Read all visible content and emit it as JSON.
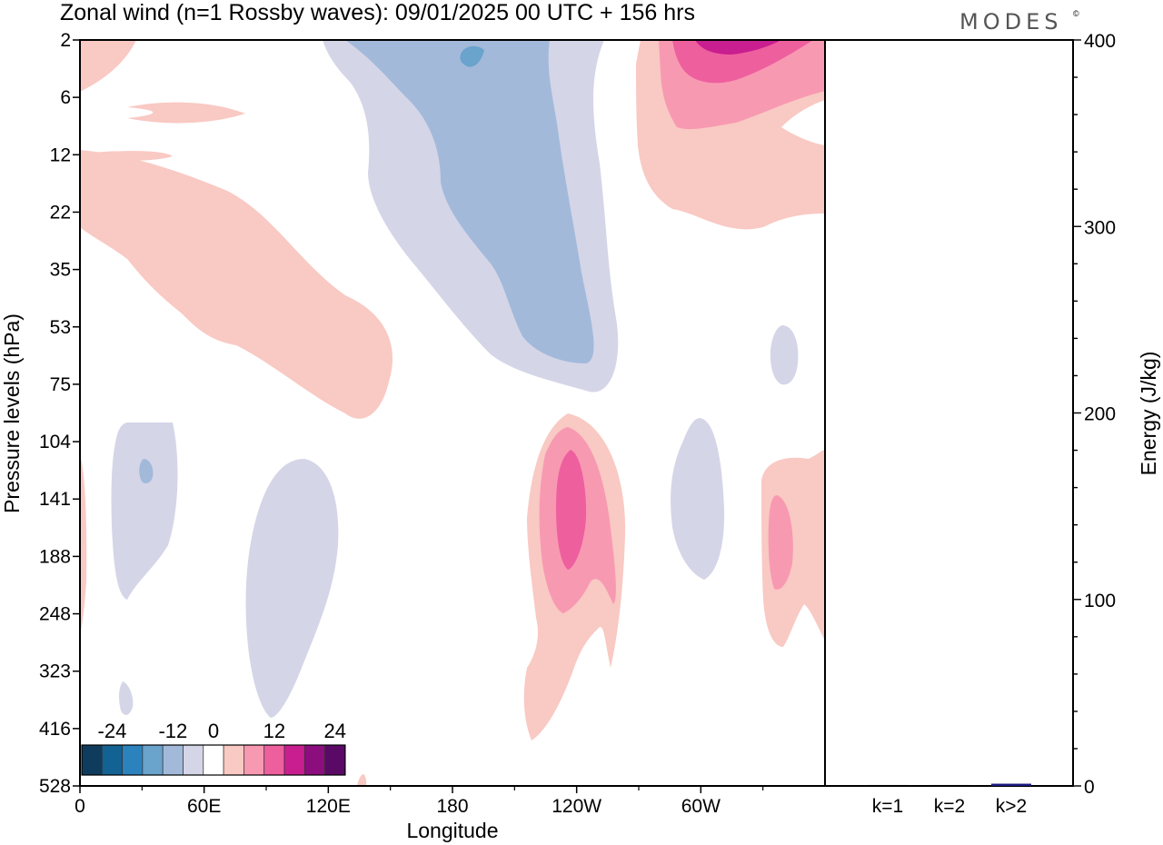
{
  "header": {
    "title": "Zonal wind (n=1 Rossby waves):  09/01/2025  00 UTC  + 156 hrs",
    "brand": "MODES",
    "brand_mark": "©"
  },
  "chart_data": [
    {
      "type": "heatmap",
      "title": "Zonal wind (n=1 Rossby waves):  09/01/2025  00 UTC  + 156 hrs",
      "xlabel": "Longitude",
      "ylabel": "Pressure levels (hPa)",
      "x_ticks": [
        "0",
        "60E",
        "120E",
        "180",
        "120W",
        "60W"
      ],
      "x_tick_degrees": [
        0,
        60,
        120,
        180,
        240,
        300
      ],
      "xlim": [
        0,
        360
      ],
      "y_ticks": [
        "2",
        "6",
        "12",
        "22",
        "35",
        "53",
        "75",
        "104",
        "141",
        "188",
        "248",
        "323",
        "416",
        "528"
      ],
      "y_scale": "model levels (categorical, top to bottom)",
      "colorbar": {
        "tick_labels": [
          "-24",
          "-12",
          "0",
          "12",
          "24"
        ],
        "levels": [
          -28,
          -24,
          -20,
          -16,
          -12,
          -8,
          -4,
          4,
          8,
          12,
          16,
          20,
          24,
          28
        ],
        "colors": [
          "#0f3c5c",
          "#126294",
          "#2b82bd",
          "#6aa3cc",
          "#a2b9da",
          "#d5d5e8",
          "#ffffff",
          "#f9c9c3",
          "#f899b2",
          "#ee5f9e",
          "#c91e8f",
          "#8c0d7d",
          "#5a0a66"
        ]
      },
      "features": [
        {
          "kind": "positive",
          "level": 4,
          "location": "0–60E, 12–75 hPa"
        },
        {
          "kind": "negative",
          "level": -4,
          "location": "140E–120W, 2–75 hPa"
        },
        {
          "kind": "negative",
          "level": -8,
          "location": "160E–130W, 2–53 hPa"
        },
        {
          "kind": "positive",
          "level": 12,
          "location": "70W–90W, 2 hPa"
        },
        {
          "kind": "positive",
          "level": 8,
          "location": "110W–130W, 104–248 hPa"
        },
        {
          "kind": "negative",
          "level": -4,
          "location": "10E–30E, 104–248 hPa"
        },
        {
          "kind": "negative",
          "level": -4,
          "location": "50E–80E, 104–416 hPa"
        }
      ]
    },
    {
      "type": "bar",
      "categories": [
        "k=1",
        "k=2",
        "k>2"
      ],
      "values": [
        0.5,
        0.5,
        1.2
      ],
      "xlabel": "",
      "ylabel": "Energy (J/kg)",
      "ylim": [
        0,
        400
      ],
      "y_ticks": [
        "0",
        "100",
        "200",
        "300",
        "400"
      ],
      "colors": [
        "#000000",
        "#000000",
        "#1a1a80"
      ]
    }
  ]
}
